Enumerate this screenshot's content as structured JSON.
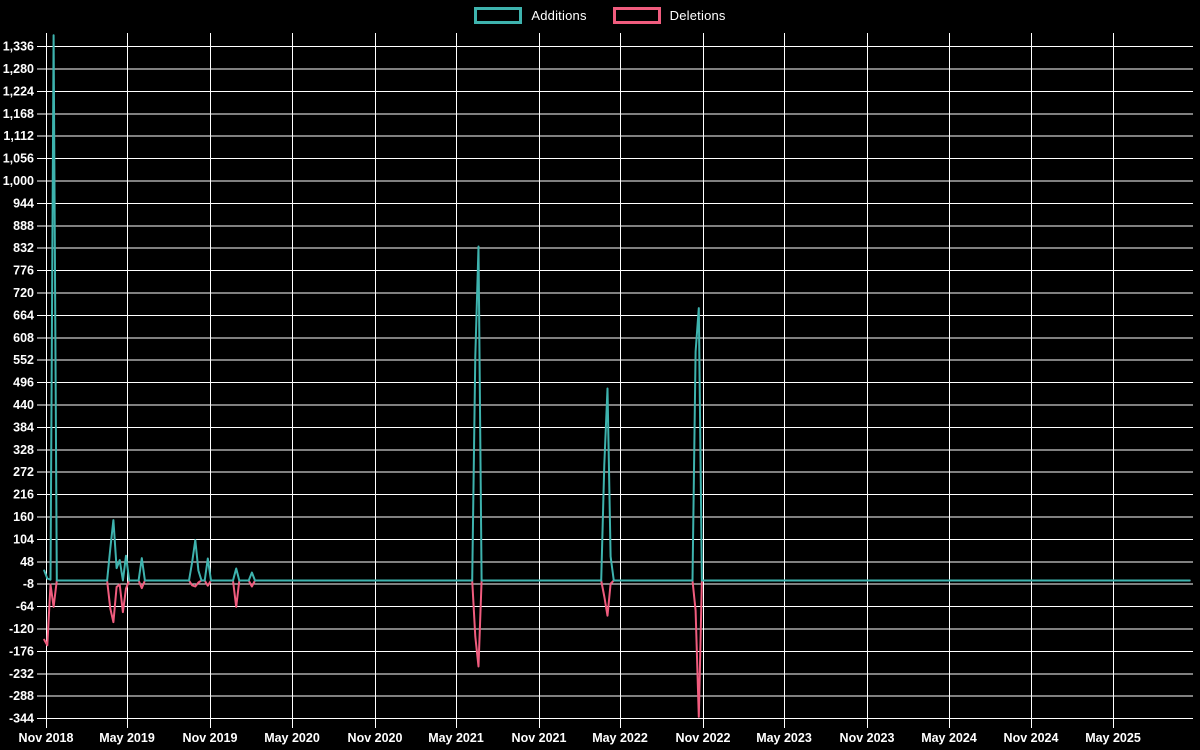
{
  "legend": {
    "items": [
      {
        "label": "Additions",
        "color": "#3eb3ae"
      },
      {
        "label": "Deletions",
        "color": "#f05c7e"
      }
    ]
  },
  "chart_data": {
    "type": "line",
    "title": "",
    "xlabel": "",
    "ylabel": "",
    "background": "#000000",
    "grid": true,
    "gridline_color": "#ffffff",
    "legend_position": "top-center",
    "x_axis": {
      "ticks": [
        {
          "date": "2018-11-01",
          "label": "Nov 2018"
        },
        {
          "date": "2019-05-01",
          "label": "May 2019"
        },
        {
          "date": "2019-11-01",
          "label": "Nov 2019"
        },
        {
          "date": "2020-05-01",
          "label": "May 2020"
        },
        {
          "date": "2020-11-01",
          "label": "Nov 2020"
        },
        {
          "date": "2021-05-01",
          "label": "May 2021"
        },
        {
          "date": "2021-11-01",
          "label": "Nov 2021"
        },
        {
          "date": "2022-05-01",
          "label": "May 2022"
        },
        {
          "date": "2022-11-01",
          "label": "Nov 2022"
        },
        {
          "date": "2023-05-01",
          "label": "May 2023"
        },
        {
          "date": "2023-11-01",
          "label": "Nov 2023"
        },
        {
          "date": "2024-05-01",
          "label": "May 2024"
        },
        {
          "date": "2024-11-01",
          "label": "Nov 2024"
        },
        {
          "date": "2025-05-01",
          "label": "May 2025"
        }
      ],
      "range": [
        "2018-10-28",
        "2025-10-19"
      ]
    },
    "y_axis": {
      "ticks": [
        {
          "value": 1336,
          "label": "1,336"
        },
        {
          "value": 1280,
          "label": "1,280"
        },
        {
          "value": 1224,
          "label": "1,224"
        },
        {
          "value": 1168,
          "label": "1,168"
        },
        {
          "value": 1112,
          "label": "1,112"
        },
        {
          "value": 1056,
          "label": "1,056"
        },
        {
          "value": 1000,
          "label": "1,000"
        },
        {
          "value": 944,
          "label": "944"
        },
        {
          "value": 888,
          "label": "888"
        },
        {
          "value": 832,
          "label": "832"
        },
        {
          "value": 776,
          "label": "776"
        },
        {
          "value": 720,
          "label": "720"
        },
        {
          "value": 664,
          "label": "664"
        },
        {
          "value": 608,
          "label": "608"
        },
        {
          "value": 552,
          "label": "552"
        },
        {
          "value": 496,
          "label": "496"
        },
        {
          "value": 440,
          "label": "440"
        },
        {
          "value": 384,
          "label": "384"
        },
        {
          "value": 328,
          "label": "328"
        },
        {
          "value": 272,
          "label": "272"
        },
        {
          "value": 216,
          "label": "216"
        },
        {
          "value": 160,
          "label": "160"
        },
        {
          "value": 104,
          "label": "104"
        },
        {
          "value": 48,
          "label": "48"
        },
        {
          "value": -8,
          "label": "-8"
        },
        {
          "value": -64,
          "label": "-64"
        },
        {
          "value": -120,
          "label": "-120"
        },
        {
          "value": -176,
          "label": "-176"
        },
        {
          "value": -232,
          "label": "-232"
        },
        {
          "value": -288,
          "label": "-288"
        },
        {
          "value": -344,
          "label": "-344"
        }
      ],
      "min": -354,
      "max": 1364
    },
    "series": [
      {
        "name": "Additions",
        "color": "#3eb3ae",
        "baseline_value": 0,
        "points": [
          [
            "2018-10-28",
            25
          ],
          [
            "2018-11-04",
            5
          ],
          [
            "2018-11-11",
            2
          ],
          [
            "2018-11-18",
            1363
          ],
          [
            "2018-11-25",
            0
          ],
          [
            "2019-03-17",
            0
          ],
          [
            "2019-03-24",
            80
          ],
          [
            "2019-03-31",
            151
          ],
          [
            "2019-04-07",
            31
          ],
          [
            "2019-04-14",
            51
          ],
          [
            "2019-04-21",
            0
          ],
          [
            "2019-04-28",
            62
          ],
          [
            "2019-05-05",
            0
          ],
          [
            "2019-05-26",
            0
          ],
          [
            "2019-06-02",
            56
          ],
          [
            "2019-06-09",
            0
          ],
          [
            "2019-09-15",
            0
          ],
          [
            "2019-09-22",
            45
          ],
          [
            "2019-09-29",
            101
          ],
          [
            "2019-10-06",
            25
          ],
          [
            "2019-10-13",
            0
          ],
          [
            "2019-10-20",
            0
          ],
          [
            "2019-10-27",
            55
          ],
          [
            "2019-11-03",
            0
          ],
          [
            "2019-12-22",
            0
          ],
          [
            "2019-12-29",
            30
          ],
          [
            "2020-01-05",
            0
          ],
          [
            "2020-01-26",
            0
          ],
          [
            "2020-02-02",
            20
          ],
          [
            "2020-02-09",
            0
          ],
          [
            "2021-06-06",
            0
          ],
          [
            "2021-06-13",
            560
          ],
          [
            "2021-06-20",
            835
          ],
          [
            "2021-06-27",
            0
          ],
          [
            "2022-03-20",
            0
          ],
          [
            "2022-03-27",
            290
          ],
          [
            "2022-04-03",
            480
          ],
          [
            "2022-04-10",
            60
          ],
          [
            "2022-04-17",
            0
          ],
          [
            "2022-10-09",
            0
          ],
          [
            "2022-10-16",
            572
          ],
          [
            "2022-10-23",
            681
          ],
          [
            "2022-10-30",
            0
          ],
          [
            "2025-10-19",
            0
          ]
        ]
      },
      {
        "name": "Deletions",
        "color": "#f05c7e",
        "baseline_value": 0,
        "points": [
          [
            "2018-10-28",
            -148
          ],
          [
            "2018-11-04",
            -162
          ],
          [
            "2018-11-11",
            -10
          ],
          [
            "2018-11-18",
            -66
          ],
          [
            "2018-11-25",
            0
          ],
          [
            "2019-03-17",
            0
          ],
          [
            "2019-03-24",
            -70
          ],
          [
            "2019-03-31",
            -104
          ],
          [
            "2019-04-07",
            -16
          ],
          [
            "2019-04-14",
            -10
          ],
          [
            "2019-04-21",
            -79
          ],
          [
            "2019-04-28",
            -20
          ],
          [
            "2019-05-05",
            0
          ],
          [
            "2019-05-26",
            0
          ],
          [
            "2019-06-02",
            -19
          ],
          [
            "2019-06-09",
            0
          ],
          [
            "2019-09-15",
            0
          ],
          [
            "2019-09-22",
            -12
          ],
          [
            "2019-09-29",
            -15
          ],
          [
            "2019-10-06",
            -5
          ],
          [
            "2019-10-13",
            0
          ],
          [
            "2019-10-20",
            0
          ],
          [
            "2019-10-27",
            -13
          ],
          [
            "2019-11-03",
            0
          ],
          [
            "2019-12-22",
            0
          ],
          [
            "2019-12-29",
            -66
          ],
          [
            "2020-01-05",
            0
          ],
          [
            "2020-01-26",
            0
          ],
          [
            "2020-02-02",
            -15
          ],
          [
            "2020-02-09",
            0
          ],
          [
            "2021-06-06",
            0
          ],
          [
            "2021-06-13",
            -140
          ],
          [
            "2021-06-20",
            -215
          ],
          [
            "2021-06-27",
            0
          ],
          [
            "2022-03-20",
            0
          ],
          [
            "2022-03-27",
            -40
          ],
          [
            "2022-04-03",
            -88
          ],
          [
            "2022-04-10",
            -8
          ],
          [
            "2022-04-17",
            0
          ],
          [
            "2022-10-09",
            0
          ],
          [
            "2022-10-16",
            -75
          ],
          [
            "2022-10-23",
            -341
          ],
          [
            "2022-10-30",
            0
          ],
          [
            "2025-10-19",
            0
          ]
        ]
      }
    ]
  }
}
